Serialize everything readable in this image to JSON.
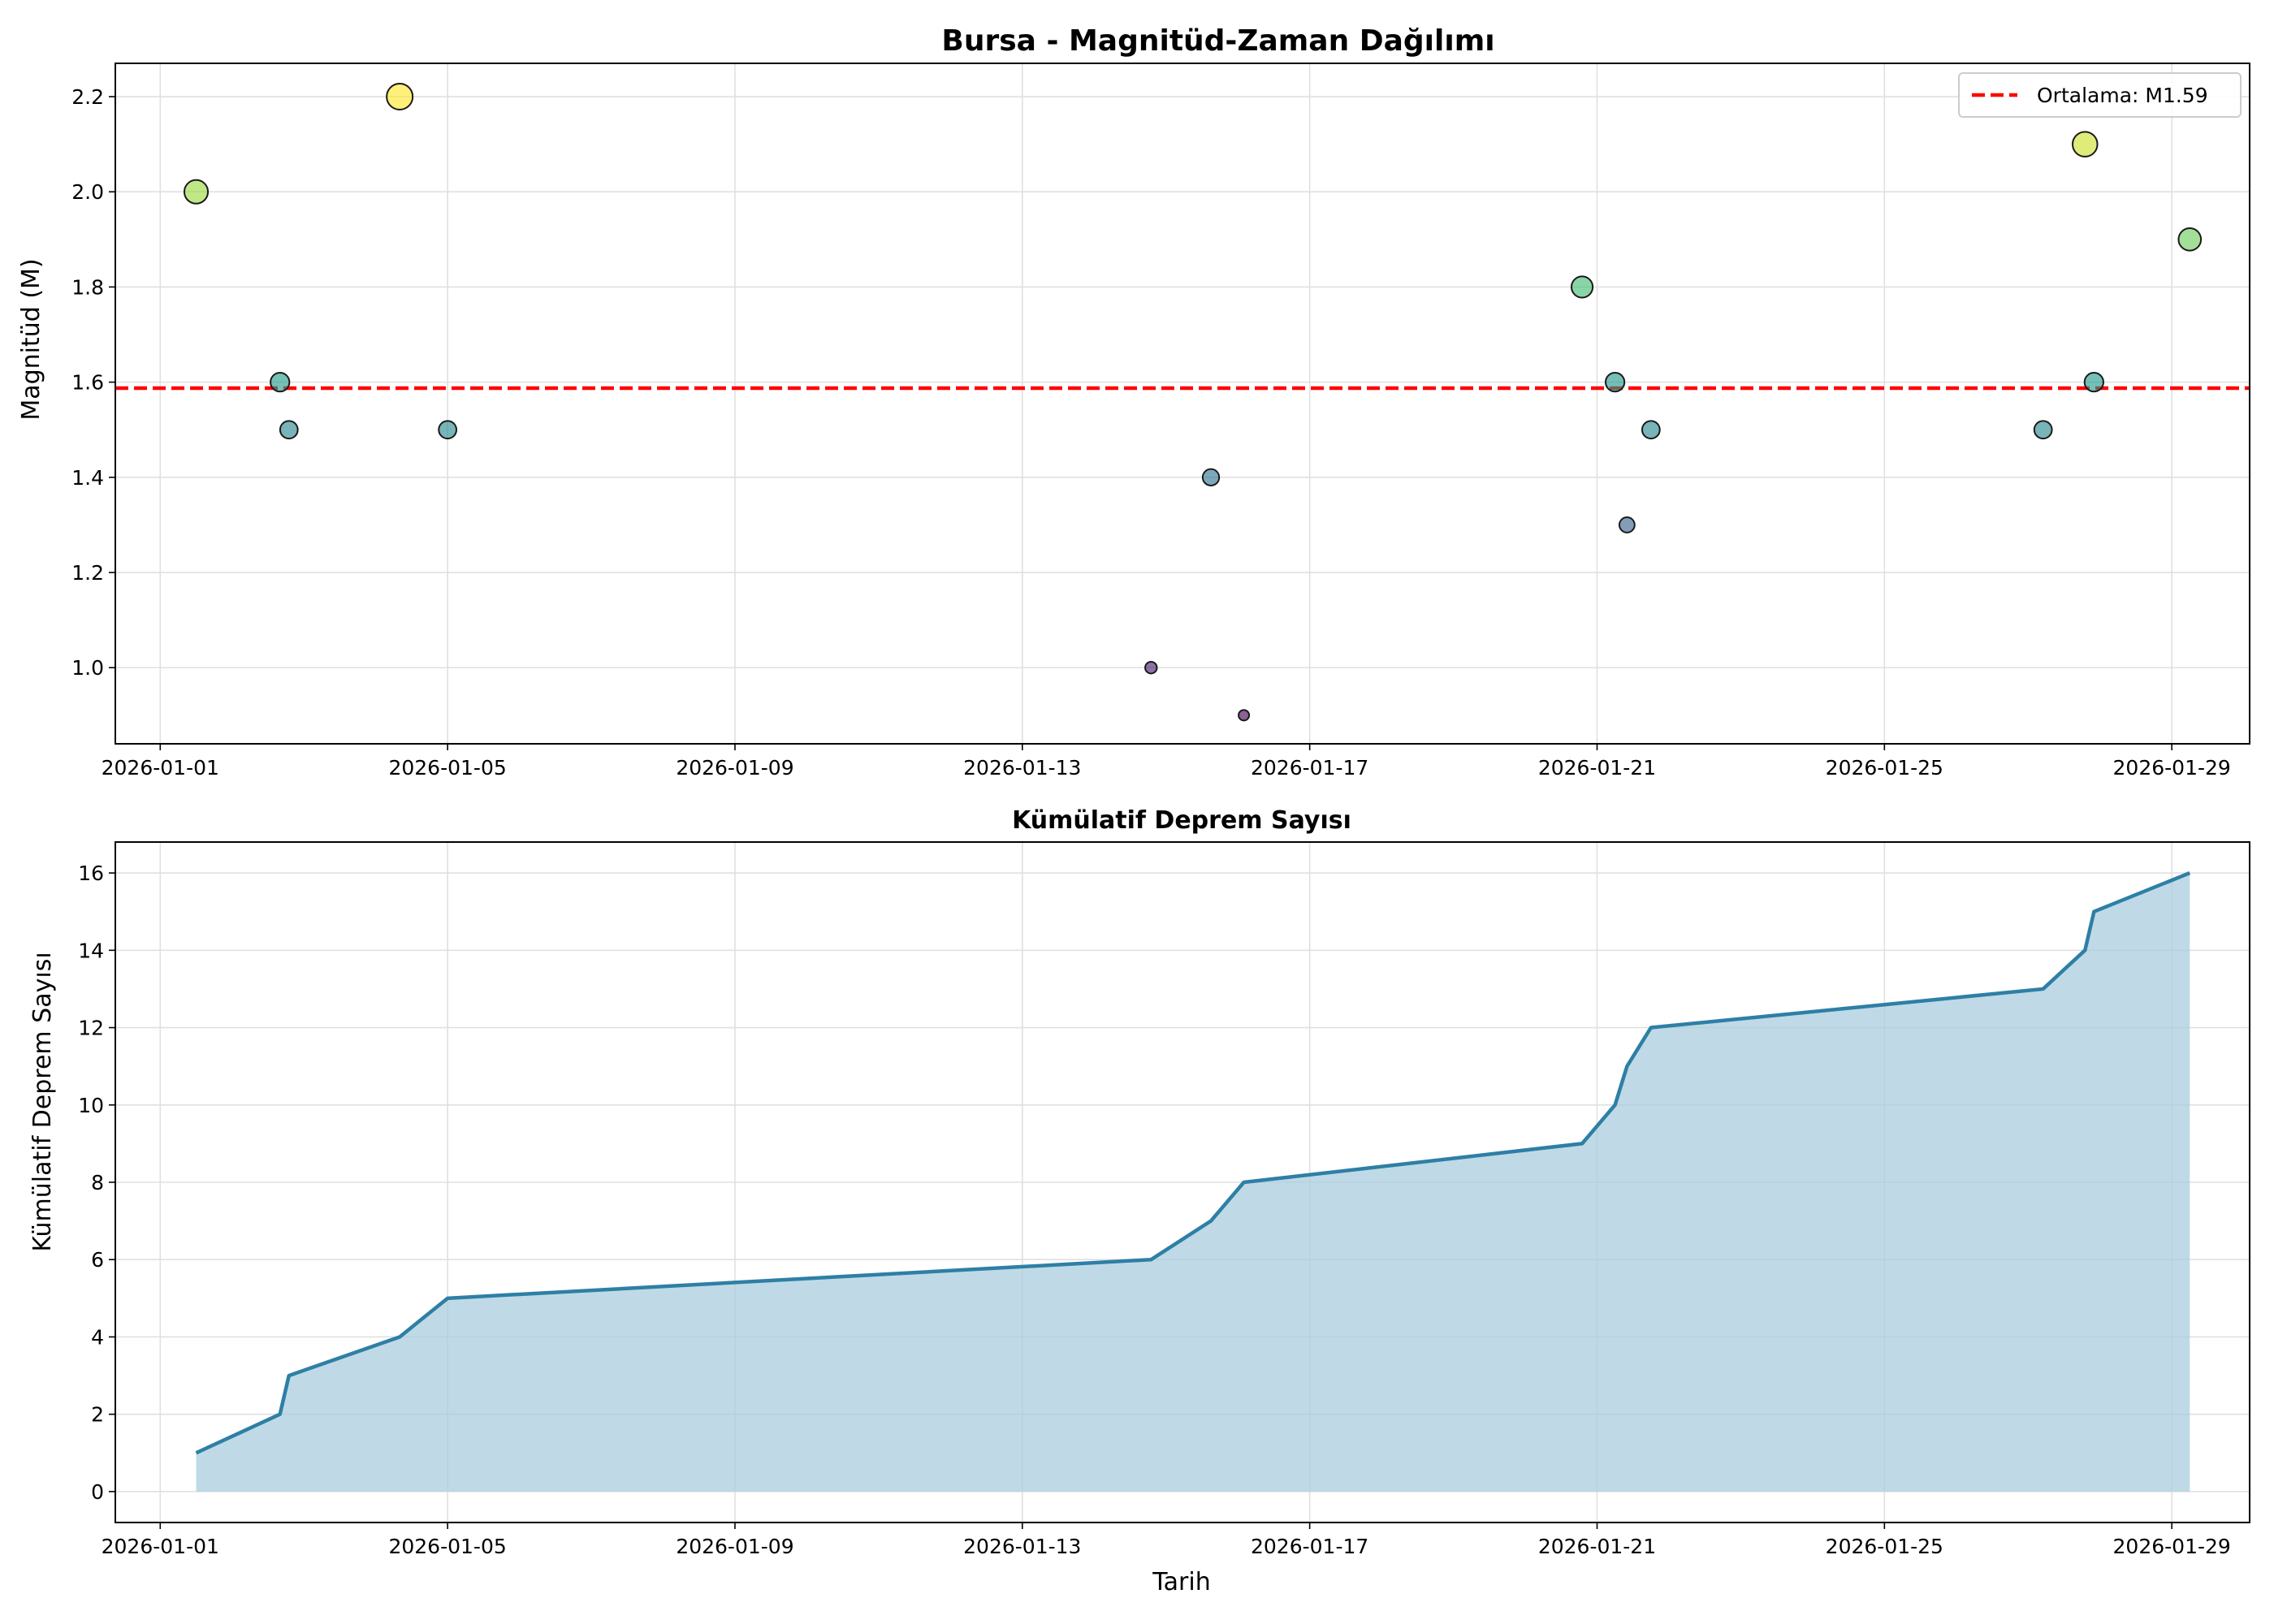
{
  "chart_data": [
    {
      "type": "scatter",
      "title": "Bursa - Magnitüd-Zaman Dağılımı",
      "xlabel": "",
      "ylabel": "Magnitüd (M)",
      "xlim": [
        "2025-12-31T09:00",
        "2026-01-30T02:00"
      ],
      "ylim": [
        0.84,
        2.27
      ],
      "x_ticks": [
        "2026-01-01",
        "2026-01-05",
        "2026-01-09",
        "2026-01-13",
        "2026-01-17",
        "2026-01-21",
        "2026-01-25",
        "2026-01-29"
      ],
      "y_ticks": [
        "1.0",
        "1.2",
        "1.4",
        "1.6",
        "1.8",
        "2.0",
        "2.2"
      ],
      "grid": true,
      "colormap": "viridis",
      "color_range": [
        0.9,
        2.2
      ],
      "points": [
        {
          "x": "2026-01-01T12:00",
          "y": 2.0
        },
        {
          "x": "2026-01-02T16:00",
          "y": 1.6
        },
        {
          "x": "2026-01-02T19:00",
          "y": 1.5
        },
        {
          "x": "2026-01-04T08:00",
          "y": 2.2
        },
        {
          "x": "2026-01-05T00:00",
          "y": 1.5
        },
        {
          "x": "2026-01-14T19:00",
          "y": 1.0
        },
        {
          "x": "2026-01-15T15:00",
          "y": 1.4
        },
        {
          "x": "2026-01-16T02:00",
          "y": 0.9
        },
        {
          "x": "2026-01-20T19:00",
          "y": 1.8
        },
        {
          "x": "2026-01-21T06:00",
          "y": 1.6
        },
        {
          "x": "2026-01-21T10:00",
          "y": 1.3
        },
        {
          "x": "2026-01-21T18:00",
          "y": 1.5
        },
        {
          "x": "2026-01-27T05:00",
          "y": 1.5
        },
        {
          "x": "2026-01-27T19:00",
          "y": 2.1
        },
        {
          "x": "2026-01-27T22:00",
          "y": 1.6
        },
        {
          "x": "2026-01-29T06:00",
          "y": 1.9
        }
      ],
      "mean_line": {
        "y": 1.5875,
        "label": "Ortalama: M1.59",
        "color": "#ff0000"
      },
      "legend": {
        "position": "top-right"
      }
    },
    {
      "type": "area",
      "title": "Kümülatif Deprem Sayısı",
      "xlabel": "Tarih",
      "ylabel": "Kümülatif Deprem Sayısı",
      "xlim": [
        "2025-12-31T09:00",
        "2026-01-30T02:00"
      ],
      "ylim": [
        -0.8,
        16.8
      ],
      "x_ticks": [
        "2026-01-01",
        "2026-01-05",
        "2026-01-09",
        "2026-01-13",
        "2026-01-17",
        "2026-01-21",
        "2026-01-25",
        "2026-01-29"
      ],
      "y_ticks": [
        "0",
        "2",
        "4",
        "6",
        "8",
        "10",
        "12",
        "14",
        "16"
      ],
      "grid": true,
      "line_color": "#2e7fa6",
      "fill_color": "#a9cddd",
      "points": [
        {
          "x": "2026-01-01T12:00",
          "y": 1
        },
        {
          "x": "2026-01-02T16:00",
          "y": 2
        },
        {
          "x": "2026-01-02T19:00",
          "y": 3
        },
        {
          "x": "2026-01-04T08:00",
          "y": 4
        },
        {
          "x": "2026-01-05T00:00",
          "y": 5
        },
        {
          "x": "2026-01-14T19:00",
          "y": 6
        },
        {
          "x": "2026-01-15T15:00",
          "y": 7
        },
        {
          "x": "2026-01-16T02:00",
          "y": 8
        },
        {
          "x": "2026-01-20T19:00",
          "y": 9
        },
        {
          "x": "2026-01-21T06:00",
          "y": 10
        },
        {
          "x": "2026-01-21T10:00",
          "y": 11
        },
        {
          "x": "2026-01-21T18:00",
          "y": 12
        },
        {
          "x": "2026-01-27T05:00",
          "y": 13
        },
        {
          "x": "2026-01-27T19:00",
          "y": 14
        },
        {
          "x": "2026-01-27T22:00",
          "y": 15
        },
        {
          "x": "2026-01-29T06:00",
          "y": 16
        }
      ]
    }
  ]
}
